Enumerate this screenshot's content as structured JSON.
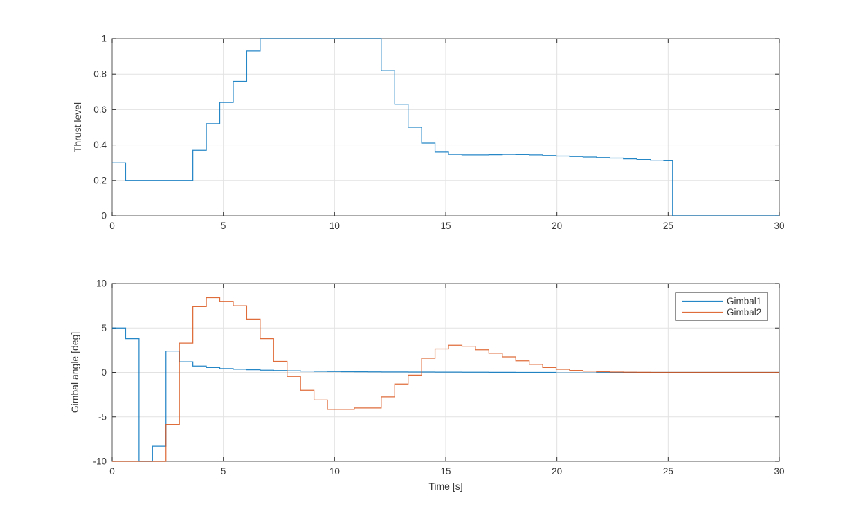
{
  "figure": {
    "background": "#ffffff",
    "axis_border_color": "#7e7e7e",
    "tick_color": "#333333",
    "grid_color": "#e2e2e2",
    "text_color": "#3a3a3a"
  },
  "chart_data": [
    {
      "id": "thrust",
      "type": "line",
      "line_style": "step",
      "title": "",
      "xlabel": "",
      "ylabel": "Thrust level",
      "xlim": [
        0,
        30
      ],
      "ylim": [
        0,
        1
      ],
      "xticks": [
        0,
        5,
        10,
        15,
        20,
        25,
        30
      ],
      "yticks": [
        0,
        0.2,
        0.4,
        0.6,
        0.8,
        1
      ],
      "xtick_labels": [
        "0",
        "5",
        "10",
        "15",
        "20",
        "25",
        "30"
      ],
      "ytick_labels": [
        "0",
        "0.2",
        "0.4",
        "0.6",
        "0.8",
        "1"
      ],
      "grid": true,
      "legend": null,
      "series": [
        {
          "name": "Thrust",
          "color": "#0072BD",
          "points": [
            [
              0,
              0.3
            ],
            [
              0.605,
              0.2
            ],
            [
              3.63,
              0.37
            ],
            [
              4.235,
              0.52
            ],
            [
              4.84,
              0.64
            ],
            [
              5.445,
              0.76
            ],
            [
              6.05,
              0.93
            ],
            [
              6.655,
              1.0
            ],
            [
              12.1,
              0.82
            ],
            [
              12.705,
              0.63
            ],
            [
              13.31,
              0.5
            ],
            [
              13.915,
              0.41
            ],
            [
              14.52,
              0.36
            ],
            [
              15.125,
              0.347
            ],
            [
              15.73,
              0.344
            ],
            [
              16.335,
              0.344
            ],
            [
              16.94,
              0.345
            ],
            [
              17.545,
              0.347
            ],
            [
              18.15,
              0.346
            ],
            [
              18.755,
              0.344
            ],
            [
              19.36,
              0.341
            ],
            [
              19.965,
              0.338
            ],
            [
              20.57,
              0.335
            ],
            [
              21.175,
              0.332
            ],
            [
              21.78,
              0.329
            ],
            [
              22.385,
              0.326
            ],
            [
              22.99,
              0.322
            ],
            [
              23.595,
              0.318
            ],
            [
              24.2,
              0.314
            ],
            [
              24.805,
              0.311
            ],
            [
              25.2,
              0.0
            ],
            [
              30,
              0.0
            ]
          ]
        }
      ]
    },
    {
      "id": "gimbal",
      "type": "line",
      "line_style": "step",
      "title": "",
      "xlabel": "Time [s]",
      "ylabel": "Gimbal angle [deg]",
      "xlim": [
        0,
        30
      ],
      "ylim": [
        -10,
        10
      ],
      "xticks": [
        0,
        5,
        10,
        15,
        20,
        25,
        30
      ],
      "yticks": [
        -10,
        -5,
        0,
        5,
        10
      ],
      "xtick_labels": [
        "0",
        "5",
        "10",
        "15",
        "20",
        "25",
        "30"
      ],
      "ytick_labels": [
        "-10",
        "-5",
        "0",
        "5",
        "10"
      ],
      "grid": true,
      "legend": {
        "position": "northeast",
        "entries": [
          "Gimbal1",
          "Gimbal2"
        ]
      },
      "series": [
        {
          "name": "Gimbal1",
          "color": "#0072BD",
          "points": [
            [
              0,
              5.0
            ],
            [
              0.605,
              3.8
            ],
            [
              1.21,
              -10.0
            ],
            [
              1.815,
              -8.3
            ],
            [
              2.42,
              2.4
            ],
            [
              3.025,
              1.2
            ],
            [
              3.63,
              0.72
            ],
            [
              4.235,
              0.55
            ],
            [
              4.84,
              0.44
            ],
            [
              5.445,
              0.36
            ],
            [
              6.05,
              0.3
            ],
            [
              6.655,
              0.25
            ],
            [
              7.26,
              0.21
            ],
            [
              7.865,
              0.18
            ],
            [
              8.47,
              0.15
            ],
            [
              9.075,
              0.12
            ],
            [
              9.68,
              0.1
            ],
            [
              10.285,
              0.08
            ],
            [
              10.89,
              0.07
            ],
            [
              11.495,
              0.06
            ],
            [
              12.1,
              0.05
            ],
            [
              13.31,
              0.04
            ],
            [
              14.52,
              0.03
            ],
            [
              15.73,
              0.02
            ],
            [
              16.94,
              0.01
            ],
            [
              18.15,
              0.0
            ],
            [
              19.965,
              -0.06
            ],
            [
              21.78,
              -0.02
            ],
            [
              22.99,
              0.0
            ],
            [
              30,
              0.0
            ]
          ]
        },
        {
          "name": "Gimbal2",
          "color": "#D95319",
          "points": [
            [
              0,
              -10.0
            ],
            [
              2.42,
              -5.85
            ],
            [
              3.025,
              3.3
            ],
            [
              3.63,
              7.4
            ],
            [
              4.235,
              8.4
            ],
            [
              4.84,
              8.0
            ],
            [
              5.445,
              7.5
            ],
            [
              6.05,
              6.0
            ],
            [
              6.655,
              3.8
            ],
            [
              7.26,
              1.25
            ],
            [
              7.865,
              -0.45
            ],
            [
              8.47,
              -2.0
            ],
            [
              9.075,
              -3.1
            ],
            [
              9.68,
              -4.15
            ],
            [
              10.89,
              -4.0
            ],
            [
              12.1,
              -2.75
            ],
            [
              12.705,
              -1.3
            ],
            [
              13.31,
              -0.3
            ],
            [
              13.915,
              1.6
            ],
            [
              14.52,
              2.65
            ],
            [
              15.125,
              3.05
            ],
            [
              15.73,
              2.95
            ],
            [
              16.335,
              2.55
            ],
            [
              16.94,
              2.15
            ],
            [
              17.545,
              1.75
            ],
            [
              18.15,
              1.3
            ],
            [
              18.755,
              0.9
            ],
            [
              19.36,
              0.55
            ],
            [
              19.965,
              0.35
            ],
            [
              20.57,
              0.22
            ],
            [
              21.175,
              0.14
            ],
            [
              21.78,
              0.08
            ],
            [
              22.385,
              0.04
            ],
            [
              22.99,
              0.02
            ],
            [
              23.595,
              0.01
            ],
            [
              24.2,
              0.0
            ],
            [
              30,
              0.0
            ]
          ]
        }
      ]
    }
  ]
}
